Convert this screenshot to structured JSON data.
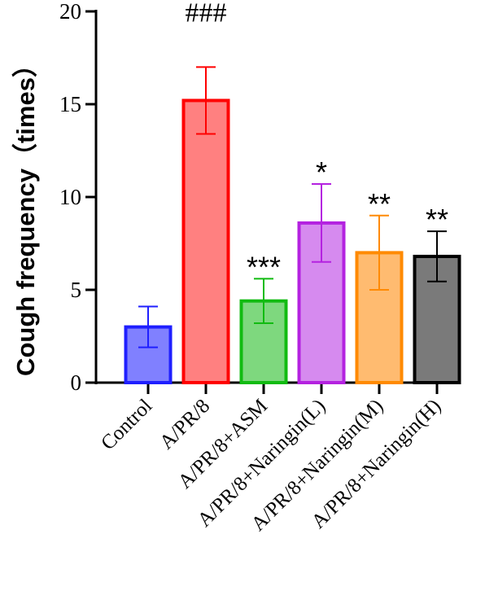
{
  "chart_data": {
    "type": "bar",
    "title": "",
    "xlabel": "",
    "ylabel": "Cough frequency（times）",
    "ylim": [
      0,
      20
    ],
    "yticks": [
      0,
      5,
      10,
      15,
      20
    ],
    "grid": false,
    "categories": [
      "Control",
      "A/PR/8",
      "A/PR/8+ASM",
      "A/PR/8+Naringin(L)",
      "A/PR/8+Naringin(M)",
      "A/PR/8+Naringin(H)"
    ],
    "values": [
      3.0,
      15.2,
      4.4,
      8.6,
      7.0,
      6.8
    ],
    "errors": [
      1.1,
      1.8,
      1.2,
      2.1,
      2.0,
      1.35
    ],
    "significance": [
      "",
      "###",
      "***",
      "*",
      "**",
      "**"
    ],
    "colors": {
      "edge": [
        "#1f1fff",
        "#ff0000",
        "#11bb11",
        "#b422e0",
        "#ff8a00",
        "#000000"
      ],
      "fill": [
        "#8080ff",
        "#ff8080",
        "#7ed87e",
        "#d68aef",
        "#ffbb70",
        "#7a7a7a"
      ]
    }
  }
}
